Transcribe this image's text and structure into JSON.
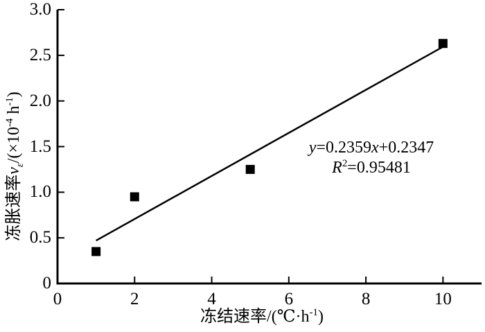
{
  "chart_data": {
    "type": "scatter",
    "title": "",
    "xlabel": "冻结速率/(℃·h-1)",
    "ylabel": "冻胀速率vε/(×10-4 h-1)",
    "xlabel_parts": [
      {
        "t": "冻结速率/(℃·h"
      },
      {
        "t": "-1",
        "style": "sup"
      },
      {
        "t": ")"
      }
    ],
    "ylabel_parts": [
      {
        "t": "冻胀速率"
      },
      {
        "t": "v",
        "style": "italic"
      },
      {
        "t": "ε",
        "style": "sub-italic"
      },
      {
        "t": "/(×10"
      },
      {
        "t": "-4",
        "style": "sup"
      },
      {
        "t": " h"
      },
      {
        "t": "-1",
        "style": "sup"
      },
      {
        "t": ")"
      }
    ],
    "points": [
      {
        "x": 1,
        "y": 0.35
      },
      {
        "x": 2,
        "y": 0.95
      },
      {
        "x": 5,
        "y": 1.25
      },
      {
        "x": 10,
        "y": 2.63
      }
    ],
    "trendline": {
      "slope": 0.2359,
      "intercept": 0.2347,
      "x_start": 1,
      "x_end": 10
    },
    "annotation": {
      "equation": "y=0.2359x+0.2347",
      "r_squared": "R2=0.95481",
      "line1_parts": [
        {
          "t": "y",
          "style": "italic"
        },
        {
          "t": "=0.2359"
        },
        {
          "t": "x",
          "style": "italic"
        },
        {
          "t": "+0.2347"
        }
      ],
      "line2_parts": [
        {
          "t": "R",
          "style": "italic"
        },
        {
          "t": "2",
          "style": "sup"
        },
        {
          "t": "=0.95481"
        }
      ]
    },
    "xlim": [
      0,
      11
    ],
    "ylim": [
      0,
      3.0
    ],
    "x_ticks": [
      {
        "v": 0,
        "label": "0"
      },
      {
        "v": 2,
        "label": "2"
      },
      {
        "v": 4,
        "label": "4"
      },
      {
        "v": 6,
        "label": "6"
      },
      {
        "v": 8,
        "label": "8"
      },
      {
        "v": 10,
        "label": "10"
      }
    ],
    "y_ticks": [
      {
        "v": 0,
        "label": "0"
      },
      {
        "v": 0.5,
        "label": "0.5"
      },
      {
        "v": 1.0,
        "label": "1.0"
      },
      {
        "v": 1.5,
        "label": "1.5"
      },
      {
        "v": 2.0,
        "label": "2.0"
      },
      {
        "v": 2.5,
        "label": "2.5"
      },
      {
        "v": 3.0,
        "label": "3.0"
      }
    ],
    "grid": false,
    "legend": "none",
    "marker": "filled-square",
    "colors": {
      "foreground": "#000000",
      "background": "#ffffff"
    }
  }
}
